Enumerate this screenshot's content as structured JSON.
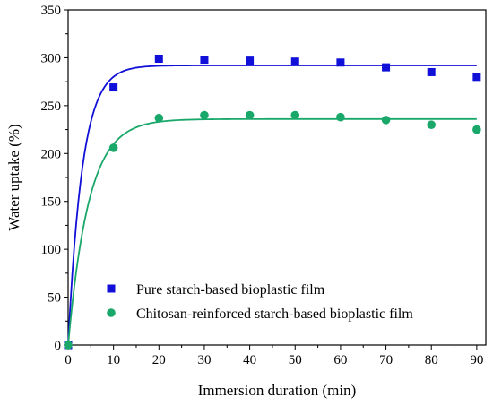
{
  "chart_data": {
    "type": "scatter",
    "title": "",
    "xlabel": "Immersion duration (min)",
    "ylabel": "Water uptake (%)",
    "xlim": [
      0,
      92
    ],
    "ylim": [
      0,
      350
    ],
    "xticks": [
      0,
      10,
      20,
      30,
      40,
      50,
      60,
      70,
      80,
      90
    ],
    "yticks": [
      0,
      50,
      100,
      150,
      200,
      250,
      300,
      350
    ],
    "grid": false,
    "legend_position": "bottom-left",
    "series": [
      {
        "name": "Pure starch-based bioplastic film",
        "marker": "square",
        "color": "#1010d8",
        "x": [
          0,
          10,
          20,
          30,
          40,
          50,
          60,
          70,
          80,
          90
        ],
        "y": [
          0,
          269,
          299,
          298,
          297,
          296,
          295,
          290,
          285,
          280
        ],
        "fit": {
          "model": "exponential-saturation",
          "plateau": 292,
          "rate": 0.32
        }
      },
      {
        "name": "Chitosan-reinforced starch-based bioplastic film",
        "marker": "circle",
        "color": "#1aa86a",
        "x": [
          0,
          10,
          20,
          30,
          40,
          50,
          60,
          70,
          80,
          90
        ],
        "y": [
          0,
          206,
          237,
          240,
          240,
          240,
          238,
          235,
          230,
          225
        ],
        "fit": {
          "model": "exponential-saturation",
          "plateau": 236,
          "rate": 0.22
        }
      }
    ]
  }
}
